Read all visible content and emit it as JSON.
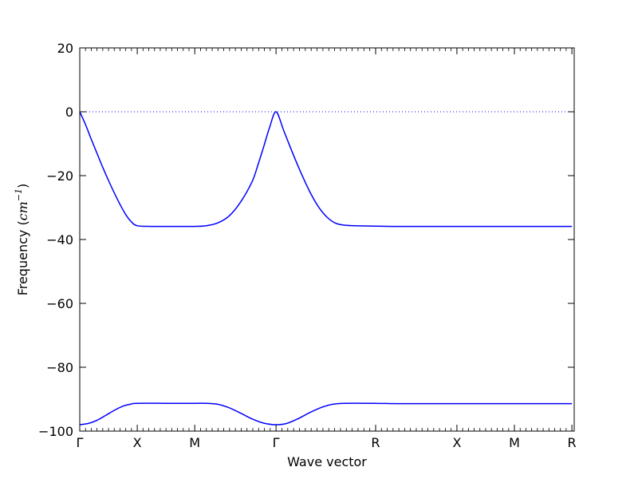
{
  "chart_data": {
    "type": "line",
    "xlabel": "Wave vector",
    "ylabel": {
      "prefix": "Frequency (",
      "unit": "cm",
      "exponent": "−1",
      "suffix": ")"
    },
    "ylim": [
      -100,
      20
    ],
    "yticks": [
      {
        "value": 20,
        "label": "20"
      },
      {
        "value": 0,
        "label": "0"
      },
      {
        "value": -20,
        "label": "−20"
      },
      {
        "value": -40,
        "label": "−40"
      },
      {
        "value": -60,
        "label": "−60"
      },
      {
        "value": -80,
        "label": "−80"
      },
      {
        "value": -100,
        "label": "−100"
      }
    ],
    "xlim": [
      0,
      8.6
    ],
    "xticks": [
      {
        "position": 0.0,
        "label": "Γ"
      },
      {
        "position": 1.0,
        "label": "X"
      },
      {
        "position": 2.0,
        "label": "M"
      },
      {
        "position": 3.414,
        "label": "Γ"
      },
      {
        "position": 5.146,
        "label": "R"
      },
      {
        "position": 6.56,
        "label": "X"
      },
      {
        "position": 7.56,
        "label": "M"
      },
      {
        "position": 8.56,
        "label": "R"
      }
    ],
    "zero_line": {
      "value": 0,
      "style": "dotted"
    },
    "series": [
      {
        "color": "#0000ff",
        "points": [
          [
            0.0,
            0.0
          ],
          [
            0.1,
            -4.0
          ],
          [
            0.2,
            -8.6
          ],
          [
            0.3,
            -13.0
          ],
          [
            0.4,
            -17.4
          ],
          [
            0.5,
            -21.5
          ],
          [
            0.6,
            -25.4
          ],
          [
            0.7,
            -29.0
          ],
          [
            0.8,
            -32.2
          ],
          [
            0.9,
            -34.5
          ],
          [
            1.0,
            -35.7
          ],
          [
            1.25,
            -35.9
          ],
          [
            1.5,
            -35.9
          ],
          [
            1.75,
            -35.9
          ],
          [
            2.0,
            -35.9
          ],
          [
            2.2,
            -35.7
          ],
          [
            2.4,
            -34.8
          ],
          [
            2.6,
            -32.6
          ],
          [
            2.8,
            -28.2
          ],
          [
            3.0,
            -21.8
          ],
          [
            3.1,
            -16.6
          ],
          [
            3.2,
            -10.9
          ],
          [
            3.3,
            -5.0
          ],
          [
            3.414,
            0.0
          ],
          [
            3.55,
            -6.0
          ],
          [
            3.7,
            -12.8
          ],
          [
            3.85,
            -19.2
          ],
          [
            4.0,
            -25.0
          ],
          [
            4.15,
            -29.7
          ],
          [
            4.3,
            -33.0
          ],
          [
            4.45,
            -34.9
          ],
          [
            4.6,
            -35.5
          ],
          [
            4.8,
            -35.7
          ],
          [
            5.146,
            -35.8
          ],
          [
            5.5,
            -35.9
          ],
          [
            6.0,
            -35.9
          ],
          [
            6.56,
            -35.9
          ],
          [
            7.06,
            -35.9
          ],
          [
            7.56,
            -35.9
          ],
          [
            8.06,
            -35.9
          ],
          [
            8.56,
            -35.9
          ]
        ]
      },
      {
        "color": "#0000ff",
        "points": [
          [
            0.0,
            -98.0
          ],
          [
            0.15,
            -97.6
          ],
          [
            0.3,
            -96.6
          ],
          [
            0.45,
            -95.1
          ],
          [
            0.6,
            -93.5
          ],
          [
            0.75,
            -92.2
          ],
          [
            0.9,
            -91.5
          ],
          [
            1.0,
            -91.3
          ],
          [
            1.5,
            -91.3
          ],
          [
            2.0,
            -91.3
          ],
          [
            2.2,
            -91.3
          ],
          [
            2.4,
            -91.6
          ],
          [
            2.6,
            -92.7
          ],
          [
            2.8,
            -94.4
          ],
          [
            3.0,
            -96.2
          ],
          [
            3.2,
            -97.5
          ],
          [
            3.414,
            -98.0
          ],
          [
            3.6,
            -97.6
          ],
          [
            3.8,
            -96.1
          ],
          [
            4.0,
            -94.2
          ],
          [
            4.2,
            -92.6
          ],
          [
            4.4,
            -91.6
          ],
          [
            4.6,
            -91.3
          ],
          [
            5.146,
            -91.3
          ],
          [
            5.5,
            -91.4
          ],
          [
            6.0,
            -91.4
          ],
          [
            6.56,
            -91.4
          ],
          [
            7.06,
            -91.4
          ],
          [
            7.56,
            -91.4
          ],
          [
            8.06,
            -91.4
          ],
          [
            8.56,
            -91.4
          ]
        ]
      }
    ]
  }
}
